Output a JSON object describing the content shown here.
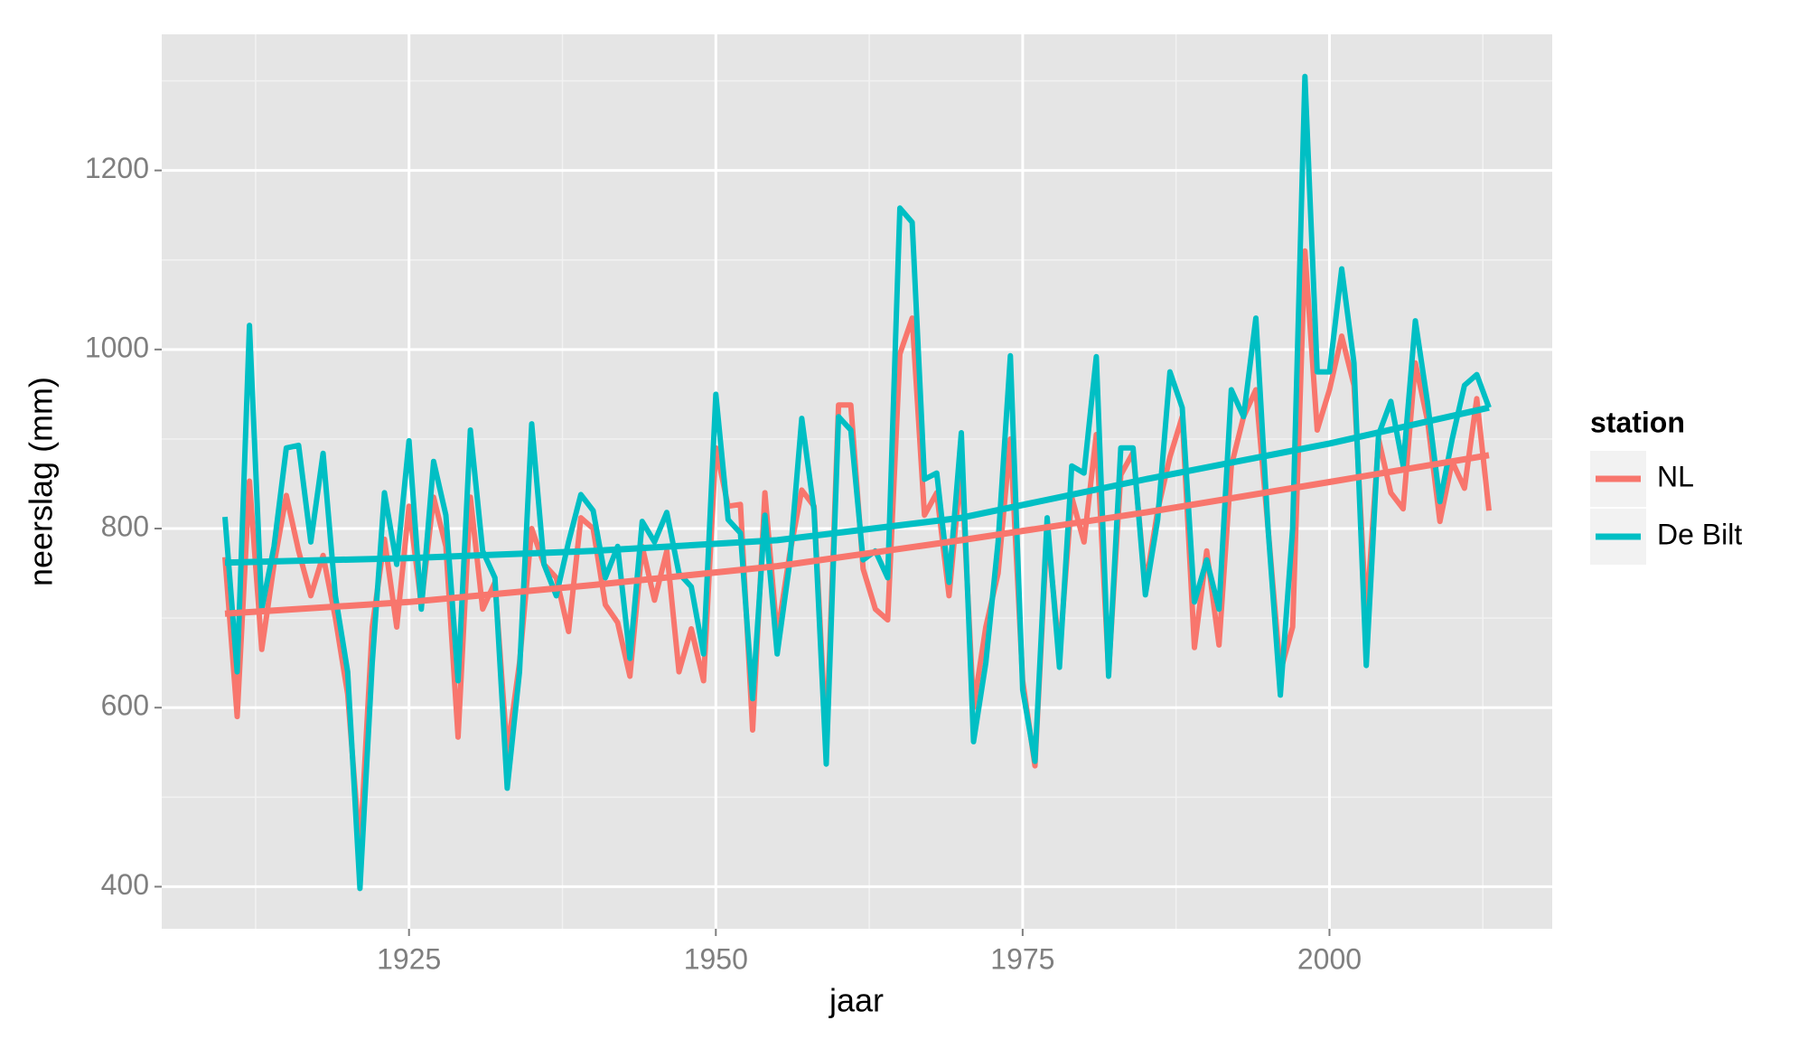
{
  "chart_data": {
    "type": "line",
    "xlabel": "jaar",
    "ylabel": "neerslag (mm)",
    "legend_title": "station",
    "legend": "right",
    "grid": true,
    "x": [
      1910,
      1911,
      1912,
      1913,
      1914,
      1915,
      1916,
      1917,
      1918,
      1919,
      1920,
      1921,
      1922,
      1923,
      1924,
      1925,
      1926,
      1927,
      1928,
      1929,
      1930,
      1931,
      1932,
      1933,
      1934,
      1935,
      1936,
      1937,
      1938,
      1939,
      1940,
      1941,
      1942,
      1943,
      1944,
      1945,
      1946,
      1947,
      1948,
      1949,
      1950,
      1951,
      1952,
      1953,
      1954,
      1955,
      1956,
      1957,
      1958,
      1959,
      1960,
      1961,
      1962,
      1963,
      1964,
      1965,
      1966,
      1967,
      1968,
      1969,
      1970,
      1971,
      1972,
      1973,
      1974,
      1975,
      1976,
      1977,
      1978,
      1979,
      1980,
      1981,
      1982,
      1983,
      1984,
      1985,
      1986,
      1987,
      1988,
      1989,
      1990,
      1991,
      1992,
      1993,
      1994,
      1995,
      1996,
      1997,
      1998,
      1999,
      2000,
      2001,
      2002,
      2003,
      2004,
      2005,
      2006,
      2007,
      2008,
      2009,
      2010,
      2011,
      2012,
      2013
    ],
    "trend_x": [
      1910,
      1925,
      1940,
      1955,
      1970,
      1985,
      2000,
      2013
    ],
    "series": [
      {
        "name": "NL",
        "color": "#f8766d",
        "values": [
          768,
          590,
          853,
          665,
          760,
          837,
          775,
          725,
          770,
          700,
          615,
          440,
          690,
          788,
          690,
          825,
          715,
          835,
          780,
          567,
          835,
          710,
          740,
          550,
          650,
          800,
          760,
          745,
          685,
          812,
          800,
          715,
          695,
          635,
          780,
          720,
          775,
          640,
          688,
          630,
          890,
          825,
          827,
          575,
          840,
          680,
          770,
          843,
          825,
          560,
          938,
          938,
          755,
          710,
          698,
          995,
          1035,
          815,
          840,
          725,
          870,
          600,
          690,
          750,
          900,
          630,
          535,
          800,
          660,
          835,
          785,
          905,
          640,
          860,
          885,
          735,
          820,
          880,
          925,
          667,
          775,
          670,
          870,
          925,
          955,
          800,
          640,
          690,
          1110,
          910,
          955,
          1015,
          960,
          700,
          900,
          840,
          822,
          985,
          920,
          808,
          875,
          845,
          945,
          820
        ],
        "trend": [
          705,
          718,
          737,
          758,
          787,
          818,
          852,
          882
        ]
      },
      {
        "name": "De Bilt",
        "color": "#00bfc4",
        "values": [
          813,
          640,
          1027,
          710,
          780,
          890,
          893,
          785,
          884,
          725,
          640,
          398,
          650,
          840,
          760,
          898,
          710,
          875,
          815,
          630,
          910,
          775,
          745,
          510,
          640,
          917,
          760,
          725,
          785,
          838,
          820,
          745,
          780,
          655,
          808,
          785,
          818,
          750,
          735,
          660,
          950,
          810,
          795,
          610,
          815,
          660,
          760,
          923,
          820,
          537,
          925,
          910,
          765,
          775,
          745,
          1158,
          1142,
          855,
          862,
          740,
          907,
          562,
          650,
          785,
          993,
          620,
          540,
          812,
          645,
          870,
          862,
          992,
          635,
          890,
          890,
          726,
          810,
          975,
          935,
          718,
          765,
          710,
          955,
          925,
          1035,
          800,
          614,
          800,
          1305,
          975,
          975,
          1090,
          985,
          647,
          905,
          942,
          870,
          1032,
          940,
          830,
          900,
          960,
          972,
          935
        ],
        "trend": [
          762,
          767,
          775,
          787,
          812,
          855,
          895,
          935
        ]
      }
    ],
    "xlim": [
      1904.85,
      2018.15
    ],
    "xticks": [
      1925,
      1950,
      1975,
      2000
    ],
    "xminor": [
      1912.5,
      1937.5,
      1962.5,
      1987.5,
      2012.5
    ],
    "ylim": [
      353,
      1352
    ],
    "yticks": [
      400,
      600,
      800,
      1000,
      1200
    ],
    "yminor": [
      500,
      700,
      900,
      1100,
      1300
    ]
  }
}
